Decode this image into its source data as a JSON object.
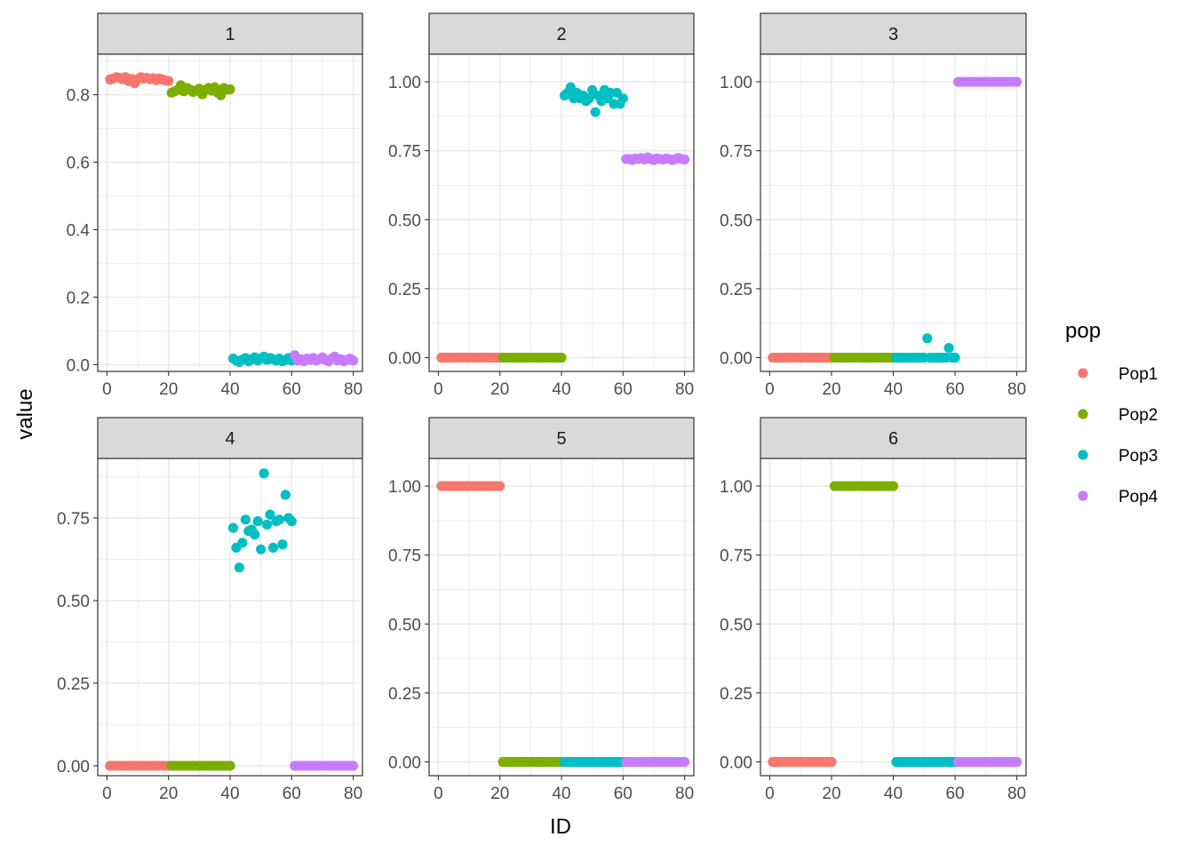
{
  "chart_data": {
    "type": "scatter",
    "xlabel": "ID",
    "ylabel": "value",
    "xlim": [
      0,
      80
    ],
    "x_ticks": [
      0,
      20,
      40,
      60,
      80
    ],
    "grid": true,
    "legend": {
      "title": "pop",
      "position": "right",
      "entries": [
        {
          "name": "Pop1",
          "color": "#F8766D"
        },
        {
          "name": "Pop2",
          "color": "#7CAE00"
        },
        {
          "name": "Pop3",
          "color": "#00BFC4"
        },
        {
          "name": "Pop4",
          "color": "#C77CFF"
        }
      ]
    },
    "panels": [
      {
        "label": "1",
        "ylim": [
          -0.02,
          0.92
        ],
        "y_ticks": [
          0.0,
          0.2,
          0.4,
          0.6,
          0.8
        ],
        "y_tick_labels": [
          "0.0",
          "0.2",
          "0.4",
          "0.6",
          "0.8"
        ],
        "series": [
          {
            "name": "Pop1",
            "values": [
              0.845,
              0.848,
              0.852,
              0.85,
              0.846,
              0.852,
              0.84,
              0.847,
              0.834,
              0.846,
              0.852,
              0.848,
              0.85,
              0.846,
              0.849,
              0.843,
              0.848,
              0.845,
              0.842,
              0.841
            ]
          },
          {
            "name": "Pop2",
            "values": [
              0.806,
              0.81,
              0.814,
              0.828,
              0.81,
              0.82,
              0.815,
              0.808,
              0.812,
              0.818,
              0.801,
              0.814,
              0.82,
              0.812,
              0.822,
              0.806,
              0.798,
              0.82,
              0.815,
              0.816
            ]
          },
          {
            "name": "Pop3",
            "values": [
              0.018,
              0.012,
              0.008,
              0.015,
              0.02,
              0.01,
              0.016,
              0.022,
              0.012,
              0.018,
              0.024,
              0.014,
              0.02,
              0.016,
              0.012,
              0.018,
              0.01,
              0.014,
              0.02,
              0.012
            ]
          },
          {
            "name": "Pop4",
            "values": [
              0.028,
              0.012,
              0.016,
              0.01,
              0.018,
              0.014,
              0.02,
              0.012,
              0.016,
              0.022,
              0.014,
              0.01,
              0.018,
              0.024,
              0.012,
              0.016,
              0.01,
              0.014,
              0.018,
              0.012
            ]
          }
        ]
      },
      {
        "label": "2",
        "ylim": [
          -0.05,
          1.1
        ],
        "y_ticks": [
          0.0,
          0.25,
          0.5,
          0.75,
          1.0
        ],
        "y_tick_labels": [
          "0.00",
          "0.25",
          "0.50",
          "0.75",
          "1.00"
        ],
        "series": [
          {
            "name": "Pop1",
            "values": [
              0,
              0,
              0,
              0,
              0,
              0,
              0,
              0,
              0,
              0,
              0,
              0,
              0,
              0,
              0,
              0,
              0,
              0,
              0,
              0
            ]
          },
          {
            "name": "Pop2",
            "values": [
              0,
              0,
              0,
              0,
              0,
              0,
              0,
              0,
              0,
              0,
              0,
              0,
              0,
              0,
              0,
              0,
              0,
              0,
              0,
              0
            ]
          },
          {
            "name": "Pop3",
            "values": [
              0.95,
              0.96,
              0.98,
              0.94,
              0.96,
              0.94,
              0.95,
              0.93,
              0.94,
              0.97,
              0.89,
              0.95,
              0.93,
              0.97,
              0.94,
              0.96,
              0.92,
              0.96,
              0.92,
              0.94
            ]
          },
          {
            "name": "Pop4",
            "values": [
              0.72,
              0.72,
              0.716,
              0.722,
              0.72,
              0.724,
              0.718,
              0.726,
              0.72,
              0.716,
              0.722,
              0.72,
              0.718,
              0.722,
              0.72,
              0.716,
              0.72,
              0.724,
              0.72,
              0.718
            ]
          }
        ]
      },
      {
        "label": "3",
        "ylim": [
          -0.05,
          1.1
        ],
        "y_ticks": [
          0.0,
          0.25,
          0.5,
          0.75,
          1.0
        ],
        "y_tick_labels": [
          "0.00",
          "0.25",
          "0.50",
          "0.75",
          "1.00"
        ],
        "series": [
          {
            "name": "Pop1",
            "values": [
              0,
              0,
              0,
              0,
              0,
              0,
              0,
              0,
              0,
              0,
              0,
              0,
              0,
              0,
              0,
              0,
              0,
              0,
              0,
              0
            ]
          },
          {
            "name": "Pop2",
            "values": [
              0,
              0,
              0,
              0,
              0,
              0,
              0,
              0,
              0,
              0,
              0,
              0,
              0,
              0,
              0,
              0,
              0,
              0,
              0,
              0
            ]
          },
          {
            "name": "Pop3",
            "values": [
              0,
              0,
              0,
              0,
              0,
              0,
              0,
              0,
              0,
              0,
              0.07,
              0,
              0,
              0,
              0,
              0,
              0,
              0.035,
              0,
              0
            ]
          },
          {
            "name": "Pop4",
            "values": [
              1,
              1,
              1,
              1,
              1,
              1,
              1,
              1,
              1,
              1,
              1,
              1,
              1,
              1,
              1,
              1,
              1,
              1,
              1,
              1
            ]
          }
        ]
      },
      {
        "label": "4",
        "ylim": [
          -0.03,
          0.93
        ],
        "y_ticks": [
          0.0,
          0.25,
          0.5,
          0.75
        ],
        "y_tick_labels": [
          "0.00",
          "0.25",
          "0.50",
          "0.75"
        ],
        "series": [
          {
            "name": "Pop1",
            "values": [
              0,
              0,
              0,
              0,
              0,
              0,
              0,
              0,
              0,
              0,
              0,
              0,
              0,
              0,
              0,
              0,
              0,
              0,
              0,
              0
            ]
          },
          {
            "name": "Pop2",
            "values": [
              0,
              0,
              0,
              0,
              0,
              0,
              0,
              0,
              0,
              0,
              0,
              0,
              0,
              0,
              0,
              0,
              0,
              0,
              0,
              0
            ]
          },
          {
            "name": "Pop3",
            "values": [
              0.72,
              0.66,
              0.6,
              0.675,
              0.745,
              0.71,
              0.715,
              0.7,
              0.74,
              0.655,
              0.885,
              0.73,
              0.76,
              0.66,
              0.74,
              0.745,
              0.67,
              0.82,
              0.75,
              0.74
            ]
          },
          {
            "name": "Pop4",
            "values": [
              0,
              0,
              0,
              0,
              0,
              0,
              0,
              0,
              0,
              0,
              0,
              0,
              0,
              0,
              0,
              0,
              0,
              0,
              0,
              0
            ]
          }
        ]
      },
      {
        "label": "5",
        "ylim": [
          -0.05,
          1.1
        ],
        "y_ticks": [
          0.0,
          0.25,
          0.5,
          0.75,
          1.0
        ],
        "y_tick_labels": [
          "0.00",
          "0.25",
          "0.50",
          "0.75",
          "1.00"
        ],
        "series": [
          {
            "name": "Pop1",
            "values": [
              1,
              1,
              1,
              1,
              1,
              1,
              1,
              1,
              1,
              1,
              1,
              1,
              1,
              1,
              1,
              1,
              1,
              1,
              1,
              1
            ]
          },
          {
            "name": "Pop2",
            "values": [
              0,
              0,
              0,
              0,
              0,
              0,
              0,
              0,
              0,
              0,
              0,
              0,
              0,
              0,
              0,
              0,
              0,
              0,
              0,
              0
            ]
          },
          {
            "name": "Pop3",
            "values": [
              0,
              0,
              0,
              0,
              0,
              0,
              0,
              0,
              0,
              0,
              0,
              0,
              0,
              0,
              0,
              0,
              0,
              0,
              0,
              0
            ]
          },
          {
            "name": "Pop4",
            "values": [
              0,
              0,
              0,
              0,
              0,
              0,
              0,
              0,
              0,
              0,
              0,
              0,
              0,
              0,
              0,
              0,
              0,
              0,
              0,
              0
            ]
          }
        ]
      },
      {
        "label": "6",
        "ylim": [
          -0.05,
          1.1
        ],
        "y_ticks": [
          0.0,
          0.25,
          0.5,
          0.75,
          1.0
        ],
        "y_tick_labels": [
          "0.00",
          "0.25",
          "0.50",
          "0.75",
          "1.00"
        ],
        "series": [
          {
            "name": "Pop1",
            "values": [
              0,
              0,
              0,
              0,
              0,
              0,
              0,
              0,
              0,
              0,
              0,
              0,
              0,
              0,
              0,
              0,
              0,
              0,
              0,
              0
            ]
          },
          {
            "name": "Pop2",
            "values": [
              1,
              1,
              1,
              1,
              1,
              1,
              1,
              1,
              1,
              1,
              1,
              1,
              1,
              1,
              1,
              1,
              1,
              1,
              1,
              1
            ]
          },
          {
            "name": "Pop3",
            "values": [
              0,
              0,
              0,
              0,
              0,
              0,
              0,
              0,
              0,
              0,
              0,
              0,
              0,
              0,
              0,
              0,
              0,
              0,
              0,
              0
            ]
          },
          {
            "name": "Pop4",
            "values": [
              0,
              0,
              0,
              0,
              0,
              0,
              0,
              0,
              0,
              0,
              0,
              0,
              0,
              0,
              0,
              0,
              0,
              0,
              0,
              0
            ]
          }
        ]
      }
    ]
  }
}
